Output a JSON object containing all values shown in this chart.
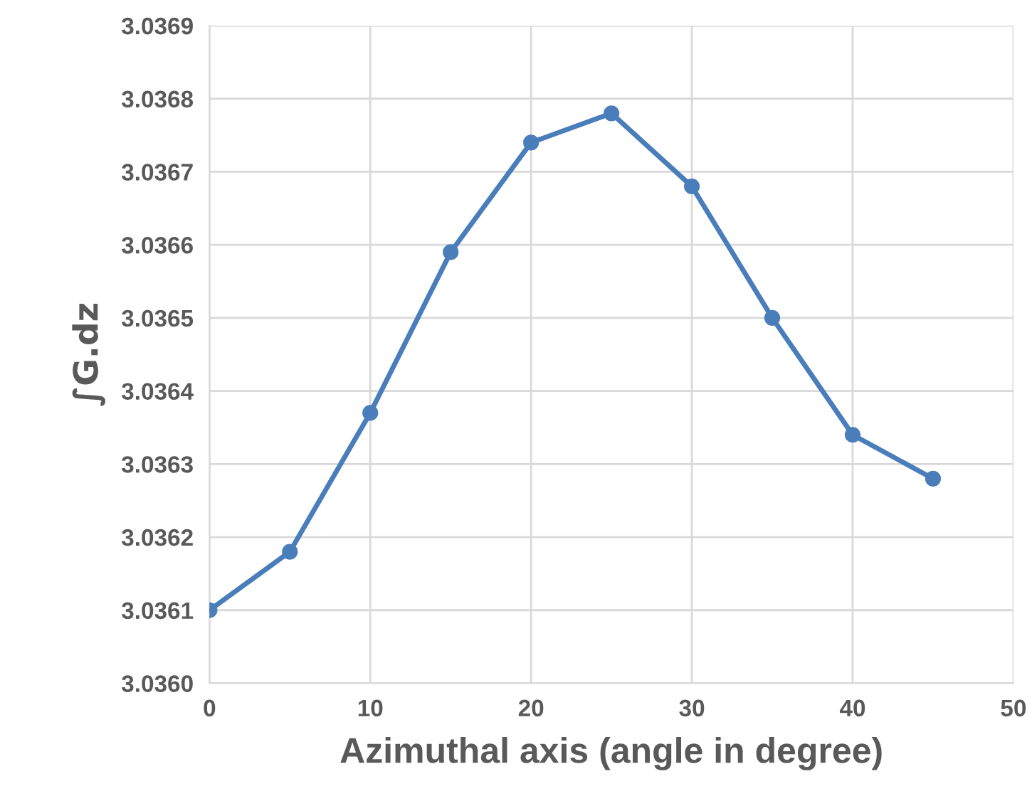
{
  "chart_data": {
    "type": "line",
    "xlabel": "Azimuthal axis (angle in degree)",
    "ylabel": "∫G.dz",
    "x": [
      0,
      5,
      10,
      15,
      20,
      25,
      30,
      35,
      40,
      45
    ],
    "series": [
      {
        "color": "#4a7ebb",
        "values": [
          3.0361,
          3.03618,
          3.03637,
          3.03659,
          3.03674,
          3.03678,
          3.03668,
          3.0365,
          3.03634,
          3.03628
        ]
      }
    ],
    "xlim": [
      0,
      50
    ],
    "xticks": [
      0,
      10,
      20,
      30,
      40,
      50
    ],
    "ylim": [
      3.036,
      3.0369
    ],
    "yticks": [
      {
        "value": 3.036,
        "label": "3.0360"
      },
      {
        "value": 3.0361,
        "label": "3.0361"
      },
      {
        "value": 3.0362,
        "label": "3.0362"
      },
      {
        "value": 3.0363,
        "label": "3.0363"
      },
      {
        "value": 3.0364,
        "label": "3.0364"
      },
      {
        "value": 3.0365,
        "label": "3.0365"
      },
      {
        "value": 3.0366,
        "label": "3.0366"
      },
      {
        "value": 3.0367,
        "label": "3.0367"
      },
      {
        "value": 3.0368,
        "label": "3.0368"
      },
      {
        "value": 3.0369,
        "label": "3.0369"
      }
    ],
    "grid": true,
    "marker": "circle",
    "line_style": "solid"
  }
}
